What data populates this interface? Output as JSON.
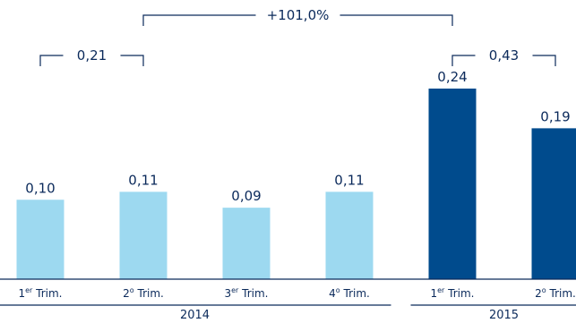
{
  "chart_data": {
    "type": "bar",
    "categories": [
      {
        "main": "1",
        "sup": "er",
        "rest": " Trim."
      },
      {
        "main": "2",
        "sup": "o",
        "rest": " Trim."
      },
      {
        "main": "3",
        "sup": "er",
        "rest": " Trim."
      },
      {
        "main": "4",
        "sup": "o",
        "rest": " Trim."
      },
      {
        "main": "1",
        "sup": "er",
        "rest": " Trim."
      },
      {
        "main": "2",
        "sup": "o",
        "rest": " Trim."
      }
    ],
    "values": [
      0.1,
      0.11,
      0.09,
      0.11,
      0.24,
      0.19
    ],
    "value_labels": [
      "0,10",
      "0,11",
      "0,09",
      "0,11",
      "0,24",
      "0,19"
    ],
    "years": [
      {
        "label": "2014",
        "from": 0,
        "to": 3
      },
      {
        "label": "2015",
        "from": 4,
        "to": 5
      }
    ],
    "annotations": [
      {
        "label": "0,21",
        "from": 0,
        "to": 1
      },
      {
        "label": "+101,0%",
        "from": 1,
        "to": 4
      },
      {
        "label": "0,43",
        "from": 4,
        "to": 5
      }
    ],
    "ylim": [
      0,
      0.24
    ],
    "legend": "none",
    "grid": false
  },
  "colors": {
    "bar_2014": "#9dd9f0",
    "bar_2015": "#004b8d",
    "text": "#0b2a5b"
  }
}
